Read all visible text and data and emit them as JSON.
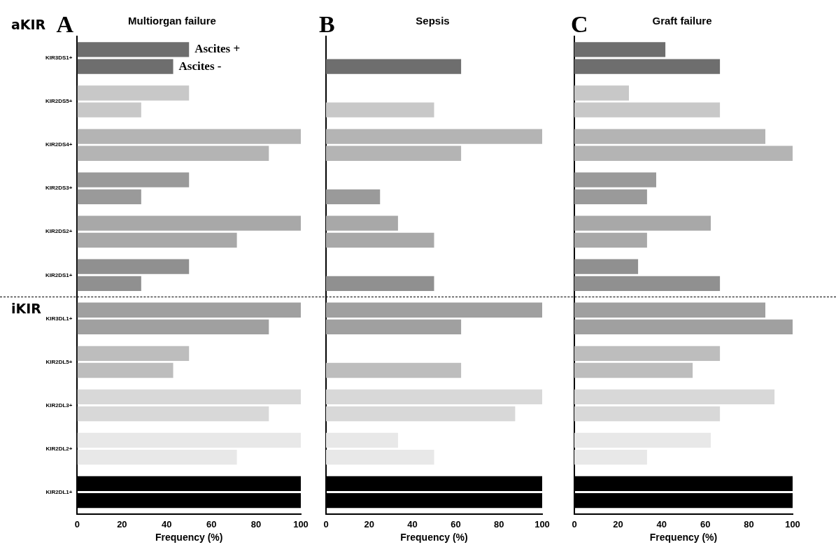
{
  "chart_data": [
    {
      "type": "bar",
      "orientation": "horizontal",
      "title": "Multiorgan failure",
      "xlabel": "Frequency (%)",
      "annotations": [
        "A",
        "aKIR",
        "iKIR"
      ],
      "categories": [
        "KIR3DS1+",
        "KIR2DS5+",
        "KIR2DS4+",
        "KIR2DS3+",
        "KIR2DS2+",
        "KIR2DS1+",
        "KIR3DL1+",
        "KIR2DL5+",
        "KIR2DL3+",
        "KIR2DL2+",
        "KIR2DL1+"
      ],
      "series": [
        {
          "name": "Ascites +",
          "colors": [
            "#6e6e6e",
            "#c8c8c8",
            "#b4b4b4",
            "#9a9a9a",
            "#a8a8a8",
            "#909090",
            "#a0a0a0",
            "#bdbdbd",
            "#d8d8d8",
            "#e8e8e8",
            "#000000"
          ],
          "values": [
            50,
            50,
            100,
            50,
            100,
            50,
            100,
            50,
            100,
            100,
            100
          ]
        },
        {
          "name": "Ascites -",
          "colors": [
            "#6e6e6e",
            "#c8c8c8",
            "#b4b4b4",
            "#9a9a9a",
            "#a8a8a8",
            "#909090",
            "#a0a0a0",
            "#bdbdbd",
            "#d8d8d8",
            "#e8e8e8",
            "#000000"
          ],
          "values": [
            42.9,
            28.6,
            85.7,
            28.6,
            71.4,
            28.6,
            85.7,
            42.9,
            85.7,
            71.4,
            100
          ]
        }
      ],
      "xlim": [
        0,
        100
      ],
      "xticks": [
        0,
        20,
        40,
        60,
        80,
        100
      ],
      "grid": false,
      "legend": "top right"
    },
    {
      "type": "bar",
      "orientation": "horizontal",
      "title": "Sepsis",
      "xlabel": "Frequency (%)",
      "annotations": [
        "B"
      ],
      "categories": [
        null,
        null,
        null,
        null,
        null,
        null,
        null,
        null,
        null,
        null,
        null
      ],
      "series": [
        {
          "colors": [
            "#6e6e6e",
            "#c8c8c8",
            "#b4b4b4",
            "#9a9a9a",
            "#a8a8a8",
            "#909090",
            "#a0a0a0",
            "#bdbdbd",
            "#d8d8d8",
            "#e8e8e8",
            "#000000"
          ],
          "values": [
            0,
            0,
            100,
            0,
            33.3,
            0,
            100,
            0,
            100,
            33.3,
            100
          ]
        },
        {
          "colors": [
            "#6e6e6e",
            "#c8c8c8",
            "#b4b4b4",
            "#9a9a9a",
            "#a8a8a8",
            "#909090",
            "#a0a0a0",
            "#bdbdbd",
            "#d8d8d8",
            "#e8e8e8",
            "#000000"
          ],
          "values": [
            62.5,
            50,
            62.5,
            25,
            50,
            50,
            62.5,
            62.5,
            87.5,
            50,
            100
          ]
        }
      ],
      "xlim": [
        0,
        100
      ],
      "xticks": [
        0,
        20,
        40,
        60,
        80,
        100
      ],
      "grid": false,
      "tick_labels": "x"
    },
    {
      "type": "bar",
      "orientation": "horizontal",
      "title": "Graft failure",
      "xlabel": "Frequency (%)",
      "annotations": [
        "C"
      ],
      "categories": [
        null,
        null,
        null,
        null,
        null,
        null,
        null,
        null,
        null,
        null,
        null
      ],
      "series": [
        {
          "colors": [
            "#6e6e6e",
            "#c8c8c8",
            "#b4b4b4",
            "#9a9a9a",
            "#a8a8a8",
            "#909090",
            "#a0a0a0",
            "#bdbdbd",
            "#d8d8d8",
            "#e8e8e8",
            "#000000"
          ],
          "values": [
            41.7,
            25,
            87.5,
            37.5,
            62.5,
            29.2,
            87.5,
            66.7,
            91.7,
            62.5,
            100
          ]
        },
        {
          "colors": [
            "#6e6e6e",
            "#c8c8c8",
            "#b4b4b4",
            "#9a9a9a",
            "#a8a8a8",
            "#909090",
            "#a0a0a0",
            "#bdbdbd",
            "#d8d8d8",
            "#e8e8e8",
            "#000000"
          ],
          "values": [
            66.7,
            66.7,
            100,
            33.3,
            33.3,
            66.7,
            100,
            54.2,
            66.7,
            33.3,
            100
          ]
        }
      ],
      "xlim": [
        0,
        100
      ],
      "xticks": [
        0,
        20,
        40,
        60,
        80,
        100
      ],
      "grid": false,
      "tick_labels": "x"
    }
  ]
}
